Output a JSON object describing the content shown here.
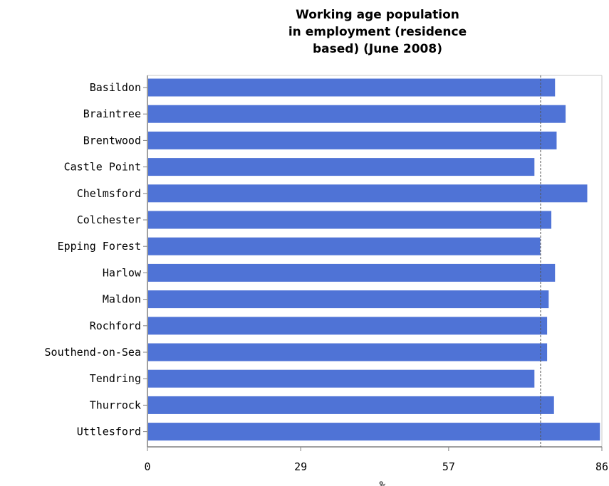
{
  "chart_data": {
    "type": "bar",
    "orientation": "horizontal",
    "title_lines": [
      "Working age population",
      "in employment (residence",
      "based) (June 2008)"
    ],
    "categories": [
      "Basildon",
      "Braintree",
      "Brentwood",
      "Castle Point",
      "Chelmsford",
      "Colchester",
      "Epping Forest",
      "Harlow",
      "Maldon",
      "Rochford",
      "Southend-on-Sea",
      "Tendring",
      "Thurrock",
      "Uttlesford"
    ],
    "values": [
      77.0,
      79.0,
      77.3,
      73.1,
      83.1,
      76.3,
      74.2,
      77.0,
      75.8,
      75.5,
      75.5,
      73.1,
      76.8,
      85.5
    ],
    "reference_line": 74.4,
    "xlim": [
      0,
      86
    ],
    "xticks": [
      0,
      29,
      57,
      86
    ],
    "xlabel": "%",
    "colors": {
      "bar": "#4f73d6",
      "axis": "#808080",
      "reference": "#555555"
    }
  }
}
